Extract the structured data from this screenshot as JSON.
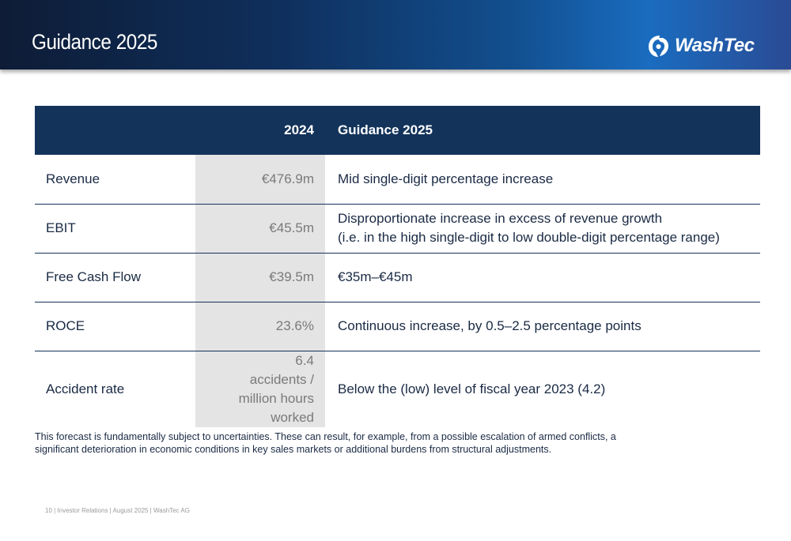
{
  "header": {
    "title": "Guidance 2025",
    "logo_text": "WashTec"
  },
  "table": {
    "headers": [
      "",
      "2024",
      "Guidance 2025"
    ],
    "rows": [
      {
        "metric": "Revenue",
        "value": "€476.9m",
        "guidance": "Mid single-digit percentage increase"
      },
      {
        "metric": "EBIT",
        "value": "€45.5m",
        "guidance": "Disproportionate increase in excess of revenue growth\n(i.e. in the high single-digit to low double-digit percentage range)"
      },
      {
        "metric": "Free Cash Flow",
        "value": "€39.5m",
        "guidance": "€35m–€45m"
      },
      {
        "metric": "ROCE",
        "value": "23.6%",
        "guidance": "Continuous increase, by 0.5–2.5 percentage points"
      },
      {
        "metric": "Accident rate",
        "value": "6.4\naccidents /\nmillion hours worked",
        "guidance": "Below the (low) level of fiscal year 2023 (4.2)"
      }
    ]
  },
  "disclaimer": "This forecast is fundamentally subject to uncertainties. These can result, for example, from a possible escalation of armed conflicts, a significant deterioration in economic conditions in key sales markets or additional burdens from structural adjustments.",
  "footer": "10 | Investor Relations | August 2025 | WashTec AG",
  "colors": {
    "header_dark": "#0e1c36",
    "header_light": "#1a6cc0",
    "table_header": "#13335a",
    "value_cell": "#e4e4e4"
  }
}
